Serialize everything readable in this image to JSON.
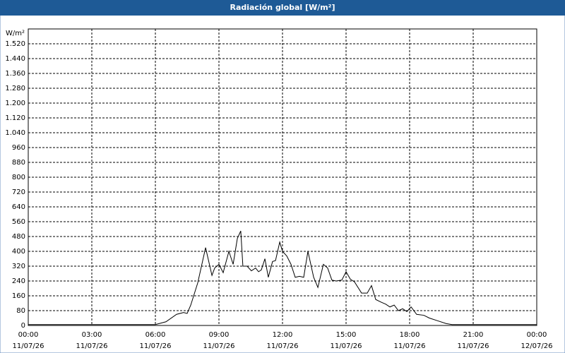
{
  "chart_data": {
    "type": "line",
    "title": "Radiación global [W/m²]",
    "y_label": "W/m²",
    "x": [
      0,
      1,
      2,
      3,
      4,
      5,
      6,
      6.5,
      7,
      7.33,
      7.5,
      7.67,
      8,
      8.37,
      8.67,
      8.8,
      9,
      9.2,
      9.47,
      9.67,
      9.87,
      10.03,
      10.13,
      10.33,
      10.53,
      10.73,
      10.87,
      11,
      11.17,
      11.33,
      11.53,
      11.67,
      11.87,
      12,
      12.2,
      12.4,
      12.6,
      12.8,
      13,
      13.2,
      13.47,
      13.67,
      13.93,
      14.13,
      14.33,
      14.53,
      14.8,
      15,
      15.2,
      15.4,
      15.73,
      16,
      16.2,
      16.4,
      16.67,
      16.87,
      17.07,
      17.27,
      17.47,
      17.67,
      17.87,
      18.07,
      18.33,
      18.67,
      18.93,
      19.33,
      19.73,
      20,
      21,
      22,
      23,
      24
    ],
    "series": [
      {
        "name": "Radiación global",
        "color": "#000000",
        "values": [
          5,
          5,
          5,
          5,
          5,
          5,
          5,
          20,
          60,
          70,
          65,
          110,
          230,
          420,
          270,
          310,
          330,
          285,
          400,
          330,
          470,
          510,
          320,
          320,
          295,
          310,
          290,
          300,
          360,
          260,
          345,
          350,
          450,
          400,
          375,
          330,
          260,
          265,
          260,
          400,
          260,
          205,
          330,
          310,
          245,
          240,
          245,
          290,
          250,
          235,
          175,
          175,
          215,
          140,
          125,
          115,
          100,
          110,
          80,
          90,
          75,
          100,
          60,
          55,
          40,
          25,
          10,
          5,
          5,
          5,
          5,
          5
        ]
      }
    ],
    "xlim": [
      0,
      24
    ],
    "xticks": [
      {
        "value": 0,
        "label": "00:00"
      },
      {
        "value": 3,
        "label": "03:00"
      },
      {
        "value": 6,
        "label": "06:00"
      },
      {
        "value": 9,
        "label": "09:00"
      },
      {
        "value": 12,
        "label": "12:00"
      },
      {
        "value": 15,
        "label": "15:00"
      },
      {
        "value": 18,
        "label": "18:00"
      },
      {
        "value": 21,
        "label": "21:00"
      },
      {
        "value": 24,
        "label": "00:00"
      }
    ],
    "xtick_dates": [
      "11/07/26",
      "11/07/26",
      "11/07/26",
      "11/07/26",
      "11/07/26",
      "11/07/26",
      "11/07/26",
      "11/07/26",
      "12/07/26"
    ],
    "ylim": [
      0,
      1600
    ],
    "yticks": [
      0,
      80,
      160,
      240,
      320,
      400,
      480,
      560,
      640,
      720,
      800,
      880,
      960,
      {
        "value": 1040,
        "label": "1.040"
      },
      {
        "value": 1120,
        "label": "1.120"
      },
      {
        "value": 1200,
        "label": "1.200"
      },
      {
        "value": 1280,
        "label": "1.280"
      },
      {
        "value": 1360,
        "label": "1.360"
      },
      {
        "value": 1440,
        "label": "1.440"
      },
      {
        "value": 1520,
        "label": "1.520"
      }
    ],
    "grid": true
  }
}
